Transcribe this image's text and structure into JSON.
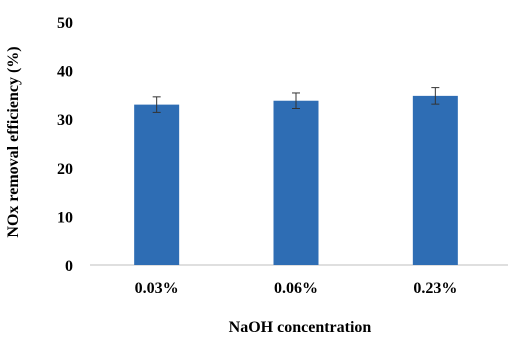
{
  "chart_data": {
    "type": "bar",
    "title": "",
    "xlabel": "NaOH concentration",
    "ylabel": "NOx removal efficiency (%)",
    "categories": [
      "0.03%",
      "0.06%",
      "0.23%"
    ],
    "values": [
      33,
      33.8,
      34.8
    ],
    "error": [
      1.6,
      1.6,
      1.7
    ],
    "ylim": [
      0,
      50
    ],
    "yticks": [
      0,
      10,
      20,
      30,
      40,
      50
    ],
    "ytick_labels": [
      "0",
      "10",
      "20",
      "30",
      "40",
      "50"
    ],
    "bar_color": "#2E6DB4",
    "grid": false,
    "legend": "none"
  }
}
